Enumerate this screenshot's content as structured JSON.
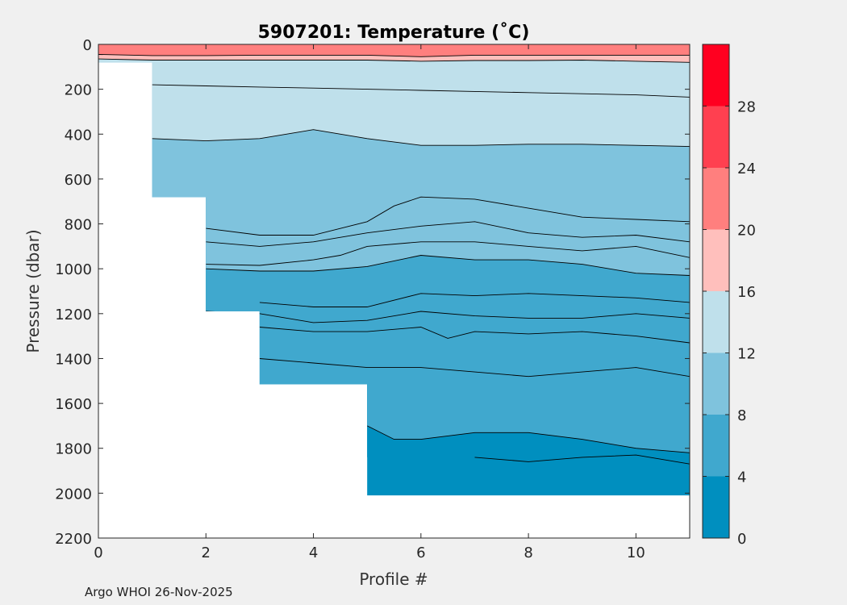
{
  "chart_data": {
    "type": "filled-contour",
    "title": "5907201:  Temperature (˚C)",
    "xlabel": "Profile #",
    "ylabel": "Pressure (dbar)",
    "xlim": [
      0,
      11
    ],
    "ylim": [
      0,
      2200
    ],
    "y_reversed": true,
    "xticks": [
      0,
      2,
      4,
      6,
      8,
      10
    ],
    "yticks": [
      0,
      200,
      400,
      600,
      800,
      1000,
      1200,
      1400,
      1600,
      1800,
      2000,
      2200
    ],
    "colorbar": {
      "range": [
        0,
        32
      ],
      "bins": [
        {
          "from": 0,
          "to": 4,
          "color": "#008fbf"
        },
        {
          "from": 4,
          "to": 8,
          "color": "#40a8ce"
        },
        {
          "from": 8,
          "to": 12,
          "color": "#7fc3dd"
        },
        {
          "from": 12,
          "to": 16,
          "color": "#bfe0eb"
        },
        {
          "from": 16,
          "to": 20,
          "color": "#ffbfbc"
        },
        {
          "from": 20,
          "to": 24,
          "color": "#ff7f7e"
        },
        {
          "from": 24,
          "to": 28,
          "color": "#ff4050"
        },
        {
          "from": 28,
          "to": 32,
          "color": "#ff0020"
        }
      ],
      "ticks": [
        0,
        4,
        8,
        12,
        16,
        20,
        24,
        28
      ]
    },
    "max_depth_by_profile": [
      {
        "from": 0,
        "to": 1,
        "depth": 80
      },
      {
        "from": 1,
        "to": 2,
        "depth": 680
      },
      {
        "from": 2,
        "to": 3,
        "depth": 1190
      },
      {
        "from": 3,
        "to": 5,
        "depth": 1515
      },
      {
        "from": 5,
        "to": 11,
        "depth": 2010
      }
    ],
    "isotherms": [
      {
        "temp": 20,
        "x": [
          0,
          1,
          2,
          3,
          4,
          5,
          6,
          7,
          8,
          9,
          10,
          11
        ],
        "p": [
          45,
          50,
          50,
          48,
          48,
          48,
          55,
          48,
          48,
          48,
          48,
          48
        ]
      },
      {
        "temp": 16,
        "x": [
          0,
          1,
          2,
          3,
          4,
          5,
          6,
          7,
          8,
          9,
          10,
          11
        ],
        "p": [
          65,
          70,
          70,
          70,
          70,
          70,
          75,
          72,
          72,
          70,
          75,
          80
        ]
      },
      {
        "temp": 14,
        "x": [
          1,
          2,
          3,
          4,
          5,
          6,
          7,
          8,
          9,
          10,
          11
        ],
        "p": [
          180,
          185,
          190,
          195,
          200,
          205,
          210,
          215,
          220,
          225,
          235
        ]
      },
      {
        "temp": 12,
        "x": [
          1,
          2,
          3,
          4,
          5,
          6,
          7,
          8,
          9,
          10,
          11
        ],
        "p": [
          420,
          430,
          420,
          380,
          420,
          450,
          450,
          445,
          445,
          450,
          455
        ]
      },
      {
        "temp": 11,
        "x": [
          2,
          3,
          4,
          5,
          5.5,
          6,
          7,
          8,
          9,
          10,
          11
        ],
        "p": [
          820,
          850,
          850,
          790,
          720,
          680,
          690,
          730,
          770,
          780,
          790
        ]
      },
      {
        "temp": 10,
        "x": [
          2,
          3,
          4,
          5,
          6,
          7,
          8,
          9,
          10,
          11
        ],
        "p": [
          880,
          900,
          880,
          840,
          810,
          790,
          840,
          860,
          850,
          880
        ]
      },
      {
        "temp": 9,
        "x": [
          2,
          3,
          4,
          4.5,
          5,
          6,
          7,
          8,
          9,
          10,
          11
        ],
        "p": [
          980,
          985,
          960,
          940,
          900,
          880,
          880,
          900,
          920,
          900,
          950
        ]
      },
      {
        "temp": 8,
        "x": [
          2,
          3,
          4,
          5,
          6,
          7,
          8,
          9,
          10,
          11
        ],
        "p": [
          1000,
          1010,
          1010,
          990,
          940,
          960,
          960,
          980,
          1020,
          1030
        ]
      },
      {
        "temp": 7,
        "x": [
          3,
          4,
          5,
          6,
          7,
          8,
          9,
          10,
          11
        ],
        "p": [
          1150,
          1170,
          1170,
          1110,
          1120,
          1110,
          1120,
          1130,
          1150
        ]
      },
      {
        "temp": 6,
        "x": [
          2,
          3,
          4,
          5,
          6,
          7,
          8,
          9,
          10,
          11
        ],
        "p": [
          1190,
          1200,
          1240,
          1230,
          1190,
          1210,
          1220,
          1220,
          1200,
          1220
        ]
      },
      {
        "temp": 5.5,
        "x": [
          3,
          4,
          5,
          6,
          6.5,
          7,
          8,
          9,
          10,
          11
        ],
        "p": [
          1260,
          1280,
          1280,
          1260,
          1310,
          1280,
          1290,
          1280,
          1300,
          1330
        ]
      },
      {
        "temp": 5,
        "x": [
          3,
          4,
          5,
          6,
          7,
          8,
          9,
          10,
          11
        ],
        "p": [
          1400,
          1420,
          1440,
          1440,
          1460,
          1480,
          1460,
          1440,
          1480
        ]
      },
      {
        "temp": 4,
        "x": [
          5,
          5.5,
          6,
          7,
          8,
          9,
          10,
          11
        ],
        "p": [
          1700,
          1760,
          1760,
          1730,
          1730,
          1760,
          1800,
          1820
        ]
      },
      {
        "temp": 3.5,
        "x": [
          7,
          8,
          9,
          10,
          11
        ],
        "p": [
          1840,
          1860,
          1840,
          1830,
          1870
        ]
      }
    ]
  },
  "credit": "Argo WHOI 26-Nov-2025"
}
